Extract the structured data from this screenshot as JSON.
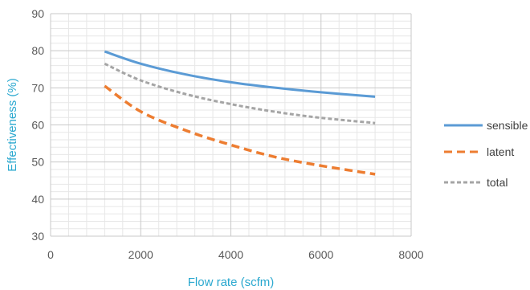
{
  "chart_data": {
    "type": "line",
    "title": "",
    "xlabel": "Flow rate (scfm)",
    "ylabel": "Effectiveness (%)",
    "xlim": [
      0,
      8000
    ],
    "ylim": [
      30,
      90
    ],
    "xticks": [
      0,
      2000,
      4000,
      6000,
      8000
    ],
    "yticks": [
      30,
      40,
      50,
      60,
      70,
      80,
      90
    ],
    "xtick_labels": [
      "0",
      "2000",
      "4000",
      "6000",
      "8000"
    ],
    "ytick_labels": [
      "30",
      "40",
      "50",
      "60",
      "70",
      "80",
      "90"
    ],
    "grid": "major and minor",
    "legend_position": "right",
    "series": [
      {
        "name": "sensible",
        "color": "#5b9bd5",
        "style": "solid",
        "x": [
          1200,
          2000,
          3000,
          4000,
          5000,
          6000,
          7200
        ],
        "y": [
          79.8,
          76.5,
          73.6,
          71.5,
          70.0,
          68.8,
          67.6
        ]
      },
      {
        "name": "latent",
        "color": "#ed7d31",
        "style": "dashed",
        "x": [
          1200,
          2000,
          3000,
          4000,
          5000,
          6000,
          7200
        ],
        "y": [
          70.5,
          63.6,
          58.5,
          54.6,
          51.3,
          49.0,
          46.7
        ]
      },
      {
        "name": "total",
        "color": "#a5a5a5",
        "style": "dotted",
        "x": [
          1200,
          2000,
          3000,
          4000,
          5000,
          6000,
          7200
        ],
        "y": [
          76.5,
          72.0,
          68.3,
          65.6,
          63.5,
          61.9,
          60.5
        ]
      }
    ]
  }
}
